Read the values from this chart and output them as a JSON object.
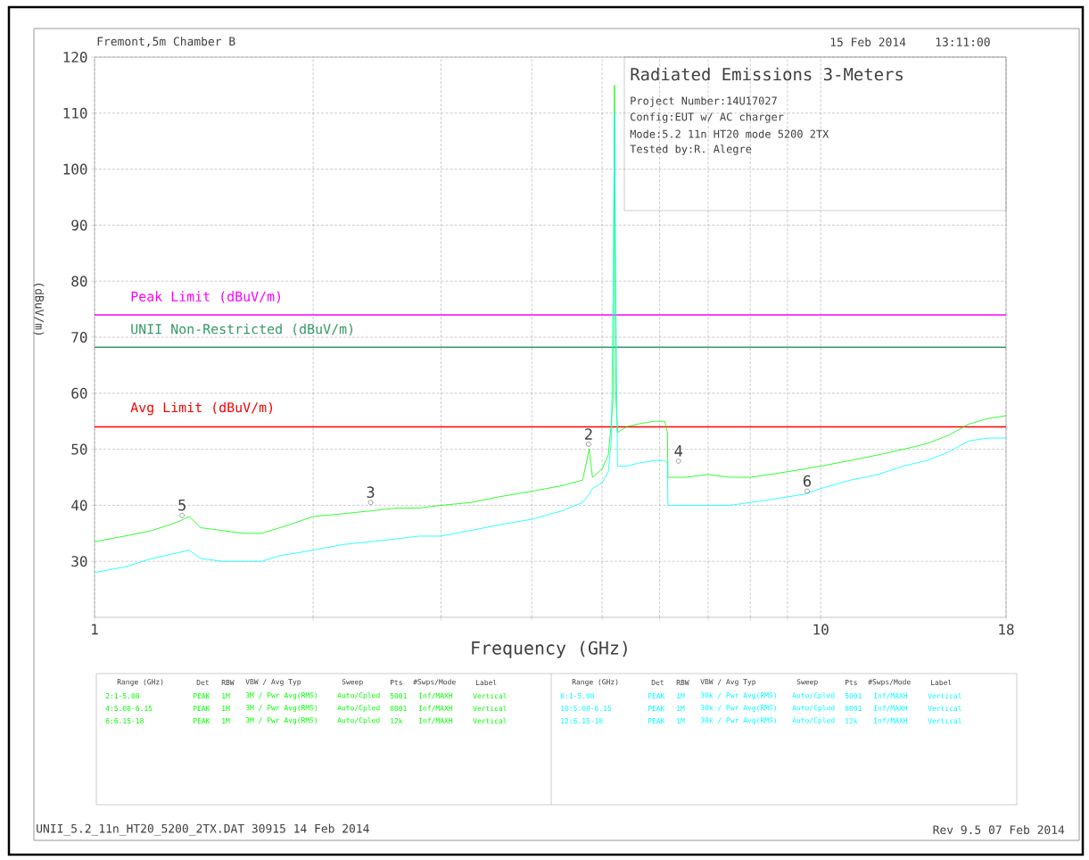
{
  "chart_data": {
    "type": "line",
    "title": "Radiated Emissions 3-Meters",
    "xlabel": "Frequency (GHz)",
    "ylabel": "(dBuV/m)",
    "log": "x",
    "grid": true,
    "xlim": [
      1,
      18
    ],
    "ylim": [
      20,
      120
    ],
    "xticks": [
      1,
      {
        "value": 2,
        "label": null
      },
      {
        "value": 3,
        "label": null
      },
      {
        "value": 4,
        "label": null
      },
      {
        "value": 5,
        "label": null
      },
      {
        "value": 6,
        "label": null
      },
      {
        "value": 7,
        "label": null
      },
      {
        "value": 8,
        "label": null
      },
      {
        "value": 9,
        "label": null
      },
      10,
      18
    ],
    "yticks": [
      30,
      40,
      50,
      60,
      70,
      80,
      90,
      100,
      110,
      120
    ],
    "x": [
      1.0,
      1.1,
      1.2,
      1.3,
      1.35,
      1.4,
      1.5,
      1.6,
      1.7,
      1.8,
      1.9,
      2.0,
      2.2,
      2.4,
      2.6,
      2.8,
      3.0,
      3.3,
      3.6,
      4.0,
      4.4,
      4.7,
      4.8,
      4.85,
      5.0,
      5.1,
      5.15,
      5.18,
      5.2,
      5.22,
      5.25,
      5.4,
      5.6,
      5.9,
      6.1,
      6.15,
      6.16,
      6.5,
      7.0,
      7.5,
      8.0,
      8.5,
      9.0,
      9.5,
      10,
      11,
      12,
      13,
      14,
      15,
      16,
      17,
      18
    ],
    "series": [
      {
        "color": "#00ff00",
        "values": [
          33.5,
          34.5,
          35.5,
          37,
          38,
          36,
          35.5,
          35,
          35,
          36,
          37,
          38,
          38.5,
          39,
          39.5,
          39.5,
          40,
          40.5,
          41.5,
          42.5,
          43.5,
          44.5,
          50,
          45,
          46.5,
          49,
          55,
          60,
          115,
          60,
          53,
          54,
          54.5,
          55,
          55,
          53,
          45,
          45,
          45.5,
          45,
          45,
          45.5,
          46,
          46.5,
          47,
          48,
          49,
          50,
          51,
          52.5,
          54.5,
          55.5,
          56
        ]
      },
      {
        "color": "#00ffff",
        "values": [
          28,
          29,
          30.5,
          31.5,
          32,
          30.5,
          30,
          30,
          30,
          31,
          31.5,
          32,
          33,
          33.5,
          34,
          34.5,
          34.5,
          35.5,
          36.5,
          37.5,
          39,
          40.5,
          42,
          43,
          44,
          46,
          52,
          80,
          110,
          80,
          47,
          47,
          47.5,
          48,
          48,
          47.5,
          40,
          40,
          40,
          40,
          40.5,
          41,
          41.5,
          42,
          43,
          44.5,
          45.5,
          47,
          48,
          49.5,
          51.5,
          52,
          52
        ]
      }
    ],
    "ref_lines": [
      {
        "axis": "y",
        "value": 74,
        "label": "Peak Limit (dBuV/m)",
        "color": "#ff00ff"
      },
      {
        "axis": "y",
        "value": 68.2,
        "label": "UNII Non-Restricted (dBuV/m)",
        "color": "#339966"
      },
      {
        "axis": "y",
        "value": 54,
        "label": "Avg Limit (dBuV/m)",
        "color": "#ff0000"
      }
    ],
    "annotations": [
      "Fremont,5m Chamber B",
      "15 Feb 2014",
      "13:11:00",
      "Project Number:14U17027",
      "Config:EUT w/ AC charger",
      "Mode:5.2 11n HT20 mode 5200 2TX",
      "Tested by:R. Alegre",
      {
        "text": "5",
        "x": 1.32,
        "y": 38.2
      },
      {
        "text": "3",
        "x": 2.4,
        "y": 40.5
      },
      {
        "text": "2",
        "x": 4.79,
        "y": 50.9
      },
      {
        "text": "4",
        "x": 6.37,
        "y": 47.9
      },
      {
        "text": "6",
        "x": 9.58,
        "y": 42.5
      },
      "Range (GHz)",
      "Det",
      "RBW",
      "VBW / Avg Typ",
      "Sweep",
      "Pts",
      "#Swps/Mode",
      "Label",
      "2:1-5.08",
      "PEAK",
      "1M",
      "3M / Pwr Avg(RMS)",
      "Auto/Cpled",
      "5001",
      "Inf/MAXH",
      "Vertical",
      "4:5.08-6.15",
      "PEAK",
      "1M",
      "3M / Pwr Avg(RMS)",
      "Auto/Cpled",
      "8001",
      "Inf/MAXH",
      "Vertical",
      "6:6.15-18",
      "PEAK",
      "1M",
      "3M / Pwr Avg(RMS)",
      "Auto/Cpled",
      "12k",
      "Inf/MAXH",
      "Vertical",
      "Range (GHz)",
      "Det",
      "RBW",
      "VBW / Avg Typ",
      "Sweep",
      "Pts",
      "#Swps/Mode",
      "Label",
      "8:1-5.08",
      "PEAK",
      "1M",
      "30k / Pwr Avg(RMS)",
      "Auto/Cpled",
      "5001",
      "Inf/MAXH",
      "Vertical",
      "10:5.08-6.15",
      "PEAK",
      "1M",
      "30k / Pwr Avg(RMS)",
      "Auto/Cpled",
      "8001",
      "Inf/MAXH",
      "Vertical",
      "12:6.15-18",
      "PEAK",
      "1M",
      "30k / Pwr Avg(RMS)",
      "Auto/Cpled",
      "12k",
      "Inf/MAXH",
      "Vertical",
      "UNII_5.2_11n_HT20_5200_2TX.DAT 30915 14 Feb 2014",
      "Rev 9.5 07 Feb 2014"
    ]
  }
}
